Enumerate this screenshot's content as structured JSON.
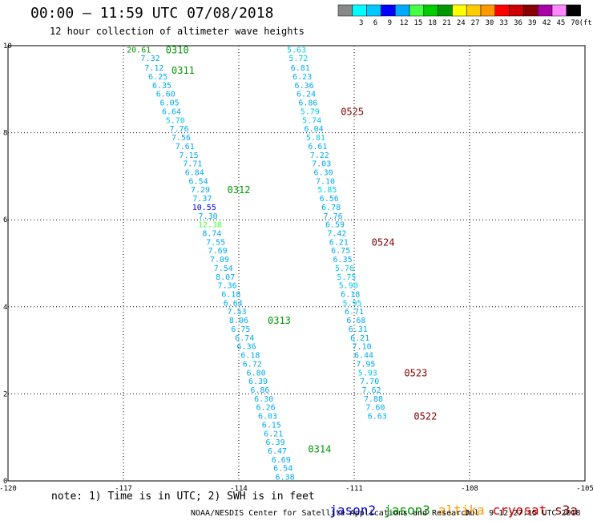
{
  "title": "00:00 — 11:59 UTC 07/08/2018",
  "subtitle": "12 hour collection of altimeter wave heights",
  "scale": {
    "unit": "(ft)",
    "bins": [
      {
        "label": "",
        "color": "#888888"
      },
      {
        "label": "3",
        "color": "#00ffff"
      },
      {
        "label": "6",
        "color": "#00c8ff"
      },
      {
        "label": "9",
        "color": "#0000ff"
      },
      {
        "label": "12",
        "color": "#00aaff"
      },
      {
        "label": "15",
        "color": "#44ff44"
      },
      {
        "label": "18",
        "color": "#00cc00"
      },
      {
        "label": "21",
        "color": "#009900"
      },
      {
        "label": "24",
        "color": "#ffff00"
      },
      {
        "label": "27",
        "color": "#ffcc00"
      },
      {
        "label": "30",
        "color": "#ff9900"
      },
      {
        "label": "33",
        "color": "#ff0000"
      },
      {
        "label": "36",
        "color": "#cc0000"
      },
      {
        "label": "39",
        "color": "#880000"
      },
      {
        "label": "42",
        "color": "#aa00aa"
      },
      {
        "label": "45",
        "color": "#ff88ff"
      },
      {
        "label": "70",
        "color": "#000000"
      }
    ]
  },
  "axes": {
    "x_min": -120,
    "x_max": -105,
    "y_min": 0,
    "y_max": 10,
    "x_ticks": [
      "-120",
      "-117",
      "-114",
      "-111",
      "-108",
      "-105"
    ],
    "y_ticks": [
      "0",
      "2",
      "4",
      "6",
      "8",
      "10"
    ]
  },
  "tracks": [
    {
      "points": [
        {
          "lon": -116.6,
          "lat": 9.92,
          "v": "20.61",
          "c": "#009900"
        },
        {
          "lon": -116.3,
          "lat": 9.72,
          "v": "7.32",
          "c": "#00aaee"
        },
        {
          "lon": -116.2,
          "lat": 9.5,
          "v": "7.12",
          "c": "#00aaee"
        },
        {
          "lon": -116.1,
          "lat": 9.3,
          "v": "6.25",
          "c": "#00aaee"
        },
        {
          "lon": -116.0,
          "lat": 9.1,
          "v": "6.35",
          "c": "#00aaee"
        },
        {
          "lon": -115.9,
          "lat": 8.9,
          "v": "6.60",
          "c": "#00aaee"
        },
        {
          "lon": -115.8,
          "lat": 8.7,
          "v": "6.05",
          "c": "#00aaee"
        },
        {
          "lon": -115.75,
          "lat": 8.5,
          "v": "6.64",
          "c": "#00aaee"
        },
        {
          "lon": -115.65,
          "lat": 8.3,
          "v": "5.70",
          "c": "#00ccee"
        },
        {
          "lon": -115.55,
          "lat": 8.1,
          "v": "7.76",
          "c": "#00aaee"
        },
        {
          "lon": -115.5,
          "lat": 7.9,
          "v": "7.56",
          "c": "#00aaee"
        },
        {
          "lon": -115.4,
          "lat": 7.7,
          "v": "7.61",
          "c": "#00aaee"
        },
        {
          "lon": -115.3,
          "lat": 7.5,
          "v": "7.15",
          "c": "#00aaee"
        },
        {
          "lon": -115.2,
          "lat": 7.3,
          "v": "7.71",
          "c": "#00aaee"
        },
        {
          "lon": -115.15,
          "lat": 7.1,
          "v": "6.84",
          "c": "#00aaee"
        },
        {
          "lon": -115.05,
          "lat": 6.9,
          "v": "6.54",
          "c": "#00aaee"
        },
        {
          "lon": -115.0,
          "lat": 6.7,
          "v": "7.29",
          "c": "#00aaee"
        },
        {
          "lon": -114.95,
          "lat": 6.5,
          "v": "7.37",
          "c": "#00aaee"
        },
        {
          "lon": -114.9,
          "lat": 6.3,
          "v": "10.55",
          "c": "#0000ff"
        },
        {
          "lon": -114.8,
          "lat": 6.1,
          "v": "7.30",
          "c": "#00aaee"
        },
        {
          "lon": -114.75,
          "lat": 5.9,
          "v": "12.38",
          "c": "#44ff44"
        },
        {
          "lon": -114.7,
          "lat": 5.7,
          "v": "8.74",
          "c": "#00aaee"
        },
        {
          "lon": -114.6,
          "lat": 5.5,
          "v": "7.55",
          "c": "#00aaee"
        },
        {
          "lon": -114.55,
          "lat": 5.3,
          "v": "7.69",
          "c": "#00aaee"
        },
        {
          "lon": -114.5,
          "lat": 5.1,
          "v": "7.09",
          "c": "#00aaee"
        },
        {
          "lon": -114.4,
          "lat": 4.9,
          "v": "7.54",
          "c": "#00aaee"
        },
        {
          "lon": -114.35,
          "lat": 4.7,
          "v": "8.07",
          "c": "#00aaee"
        },
        {
          "lon": -114.3,
          "lat": 4.5,
          "v": "7.36",
          "c": "#00aaee"
        },
        {
          "lon": -114.2,
          "lat": 4.3,
          "v": "6.18",
          "c": "#00aaee"
        },
        {
          "lon": -114.15,
          "lat": 4.1,
          "v": "6.64",
          "c": "#00aaee"
        },
        {
          "lon": -114.05,
          "lat": 3.9,
          "v": "7.53",
          "c": "#00aaee"
        },
        {
          "lon": -114.0,
          "lat": 3.7,
          "v": "8.06",
          "c": "#00aaee"
        },
        {
          "lon": -113.95,
          "lat": 3.5,
          "v": "6.75",
          "c": "#00aaee"
        },
        {
          "lon": -113.85,
          "lat": 3.3,
          "v": "6.74",
          "c": "#00aaee"
        },
        {
          "lon": -113.8,
          "lat": 3.1,
          "v": "6.36",
          "c": "#00aaee"
        },
        {
          "lon": -113.7,
          "lat": 2.9,
          "v": "6.18",
          "c": "#00aaee"
        },
        {
          "lon": -113.65,
          "lat": 2.7,
          "v": "6.72",
          "c": "#00aaee"
        },
        {
          "lon": -113.55,
          "lat": 2.5,
          "v": "6.80",
          "c": "#00aaee"
        },
        {
          "lon": -113.5,
          "lat": 2.3,
          "v": "6.39",
          "c": "#00aaee"
        },
        {
          "lon": -113.45,
          "lat": 2.1,
          "v": "6.86",
          "c": "#00aaee"
        },
        {
          "lon": -113.35,
          "lat": 1.9,
          "v": "6.30",
          "c": "#00aaee"
        },
        {
          "lon": -113.3,
          "lat": 1.7,
          "v": "6.26",
          "c": "#00aaee"
        },
        {
          "lon": -113.25,
          "lat": 1.5,
          "v": "6.03",
          "c": "#00aaee"
        },
        {
          "lon": -113.15,
          "lat": 1.3,
          "v": "6.15",
          "c": "#00aaee"
        },
        {
          "lon": -113.1,
          "lat": 1.1,
          "v": "6.21",
          "c": "#00aaee"
        },
        {
          "lon": -113.05,
          "lat": 0.9,
          "v": "6.39",
          "c": "#00aaee"
        },
        {
          "lon": -113.0,
          "lat": 0.7,
          "v": "6.47",
          "c": "#00aaee"
        },
        {
          "lon": -112.9,
          "lat": 0.5,
          "v": "6.69",
          "c": "#00aaee"
        },
        {
          "lon": -112.85,
          "lat": 0.3,
          "v": "6.54",
          "c": "#00aaee"
        },
        {
          "lon": -112.8,
          "lat": 0.1,
          "v": "6.38",
          "c": "#00aaee"
        }
      ],
      "time_labels": [
        {
          "lon": -115.9,
          "lat": 9.92,
          "t": "0310",
          "c": "#009900"
        },
        {
          "lon": -115.75,
          "lat": 9.45,
          "t": "0311",
          "c": "#009900"
        },
        {
          "lon": -114.3,
          "lat": 6.7,
          "t": "0312",
          "c": "#009900"
        },
        {
          "lon": -113.25,
          "lat": 3.7,
          "t": "0313",
          "c": "#009900"
        },
        {
          "lon": -112.2,
          "lat": 0.75,
          "t": "0314",
          "c": "#009900"
        }
      ]
    },
    {
      "points": [
        {
          "lon": -112.5,
          "lat": 9.92,
          "v": "5.63",
          "c": "#00ccee"
        },
        {
          "lon": -112.45,
          "lat": 9.72,
          "v": "5.72",
          "c": "#00ccee"
        },
        {
          "lon": -112.4,
          "lat": 9.5,
          "v": "6.81",
          "c": "#00aaee"
        },
        {
          "lon": -112.35,
          "lat": 9.3,
          "v": "6.23",
          "c": "#00aaee"
        },
        {
          "lon": -112.3,
          "lat": 9.1,
          "v": "6.36",
          "c": "#00aaee"
        },
        {
          "lon": -112.25,
          "lat": 8.9,
          "v": "6.24",
          "c": "#00aaee"
        },
        {
          "lon": -112.2,
          "lat": 8.7,
          "v": "6.86",
          "c": "#00aaee"
        },
        {
          "lon": -112.15,
          "lat": 8.5,
          "v": "5.79",
          "c": "#00ccee"
        },
        {
          "lon": -112.1,
          "lat": 8.3,
          "v": "5.74",
          "c": "#00ccee"
        },
        {
          "lon": -112.05,
          "lat": 8.1,
          "v": "6.04",
          "c": "#00aaee"
        },
        {
          "lon": -112.0,
          "lat": 7.9,
          "v": "5.81",
          "c": "#00ccee"
        },
        {
          "lon": -111.95,
          "lat": 7.7,
          "v": "6.61",
          "c": "#00aaee"
        },
        {
          "lon": -111.9,
          "lat": 7.5,
          "v": "7.22",
          "c": "#00aaee"
        },
        {
          "lon": -111.85,
          "lat": 7.3,
          "v": "7.03",
          "c": "#00aaee"
        },
        {
          "lon": -111.8,
          "lat": 7.1,
          "v": "6.30",
          "c": "#00aaee"
        },
        {
          "lon": -111.75,
          "lat": 6.9,
          "v": "7.10",
          "c": "#00aaee"
        },
        {
          "lon": -111.7,
          "lat": 6.7,
          "v": "5.85",
          "c": "#00ccee"
        },
        {
          "lon": -111.65,
          "lat": 6.5,
          "v": "6.56",
          "c": "#00aaee"
        },
        {
          "lon": -111.6,
          "lat": 6.3,
          "v": "6.78",
          "c": "#00aaee"
        },
        {
          "lon": -111.55,
          "lat": 6.1,
          "v": "7.76",
          "c": "#00aaee"
        },
        {
          "lon": -111.5,
          "lat": 5.9,
          "v": "6.59",
          "c": "#00aaee"
        },
        {
          "lon": -111.45,
          "lat": 5.7,
          "v": "7.42",
          "c": "#00aaee"
        },
        {
          "lon": -111.4,
          "lat": 5.5,
          "v": "6.21",
          "c": "#00aaee"
        },
        {
          "lon": -111.35,
          "lat": 5.3,
          "v": "6.75",
          "c": "#00aaee"
        },
        {
          "lon": -111.3,
          "lat": 5.1,
          "v": "6.35",
          "c": "#00aaee"
        },
        {
          "lon": -111.25,
          "lat": 4.9,
          "v": "5.76",
          "c": "#00ccee"
        },
        {
          "lon": -111.2,
          "lat": 4.7,
          "v": "5.75",
          "c": "#00ccee"
        },
        {
          "lon": -111.15,
          "lat": 4.5,
          "v": "5.90",
          "c": "#00ccee"
        },
        {
          "lon": -111.1,
          "lat": 4.3,
          "v": "6.18",
          "c": "#00aaee"
        },
        {
          "lon": -111.05,
          "lat": 4.1,
          "v": "5.95",
          "c": "#00ccee"
        },
        {
          "lon": -111.0,
          "lat": 3.9,
          "v": "6.71",
          "c": "#00aaee"
        },
        {
          "lon": -110.95,
          "lat": 3.7,
          "v": "6.68",
          "c": "#00aaee"
        },
        {
          "lon": -110.9,
          "lat": 3.5,
          "v": "6.31",
          "c": "#00aaee"
        },
        {
          "lon": -110.85,
          "lat": 3.3,
          "v": "6.21",
          "c": "#00aaee"
        },
        {
          "lon": -110.8,
          "lat": 3.1,
          "v": "7.10",
          "c": "#00aaee"
        },
        {
          "lon": -110.75,
          "lat": 2.9,
          "v": "6.44",
          "c": "#00aaee"
        },
        {
          "lon": -110.7,
          "lat": 2.7,
          "v": "7.95",
          "c": "#00aaee"
        },
        {
          "lon": -110.65,
          "lat": 2.5,
          "v": "5.93",
          "c": "#00ccee"
        },
        {
          "lon": -110.6,
          "lat": 2.3,
          "v": "7.70",
          "c": "#00aaee"
        },
        {
          "lon": -110.55,
          "lat": 2.1,
          "v": "7.62",
          "c": "#00aaee"
        },
        {
          "lon": -110.5,
          "lat": 1.9,
          "v": "7.88",
          "c": "#00aaee"
        },
        {
          "lon": -110.45,
          "lat": 1.7,
          "v": "7.60",
          "c": "#00aaee"
        },
        {
          "lon": -110.4,
          "lat": 1.5,
          "v": "6.63",
          "c": "#00aaee"
        }
      ],
      "time_labels": [
        {
          "lon": -111.35,
          "lat": 8.5,
          "t": "0525",
          "c": "#880000"
        },
        {
          "lon": -110.55,
          "lat": 5.5,
          "t": "0524",
          "c": "#880000"
        },
        {
          "lon": -109.7,
          "lat": 2.5,
          "t": "0523",
          "c": "#880000"
        },
        {
          "lon": -109.45,
          "lat": 1.5,
          "t": "0522",
          "c": "#880000"
        }
      ]
    }
  ],
  "note": "note: 1) Time is in UTC; 2) SWH is in feet",
  "satellites": [
    {
      "name": "jason2",
      "color": "#0000dd"
    },
    {
      "name": "jason3",
      "color": "#009900"
    },
    {
      "name": "altika",
      "color": "#ff9900"
    },
    {
      "name": "cryosat",
      "color": "#dd0000"
    },
    {
      "name": "s3a",
      "color": "#880000"
    }
  ],
  "credit": "NOAA/NESDIS Center for Satellite Applications and Research",
  "timestamp": "Jul  9 12:27:15 UTC 2018"
}
